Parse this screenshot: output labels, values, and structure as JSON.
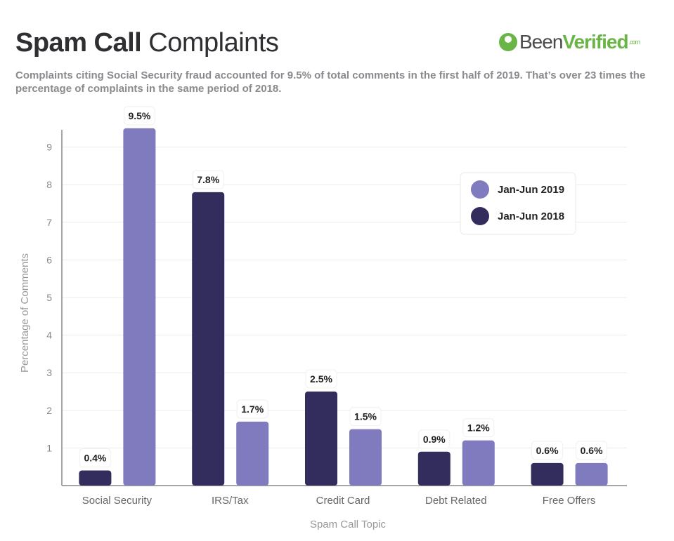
{
  "header": {
    "title_bold": "Spam Call",
    "title_light": "Complaints",
    "subtitle": "Complaints citing Social Security fraud accounted for 9.5% of total comments in the first half of 2019. That’s over 23 times the percentage of complaints in the same period of 2018.",
    "logo": {
      "text_a": "Been",
      "text_b": "Verified",
      "text_c": ".com"
    }
  },
  "chart_data": {
    "type": "bar",
    "title": "",
    "xlabel": "Spam Call Topic",
    "ylabel": "Percentage of Comments",
    "ylim": [
      0,
      9.5
    ],
    "yticks": [
      1,
      2,
      3,
      4,
      5,
      6,
      7,
      8,
      9
    ],
    "grid": true,
    "legend_placement": "top-right",
    "categories": [
      "Social Security",
      "IRS/Tax",
      "Credit Card",
      "Debt Related",
      "Free Offers"
    ],
    "series": [
      {
        "name": "Jan-Jun 2018",
        "color": "#332d5e",
        "values": [
          0.4,
          7.8,
          2.5,
          0.9,
          0.6
        ],
        "labels": [
          "0.4%",
          "7.8%",
          "2.5%",
          "0.9%",
          "0.6%"
        ]
      },
      {
        "name": "Jan-Jun 2019",
        "color": "#807abe",
        "values": [
          9.5,
          1.7,
          1.5,
          1.2,
          0.6
        ],
        "labels": [
          "9.5%",
          "1.7%",
          "1.5%",
          "1.2%",
          "0.6%"
        ]
      }
    ],
    "legend_order": [
      "Jan-Jun 2019",
      "Jan-Jun 2018"
    ]
  }
}
